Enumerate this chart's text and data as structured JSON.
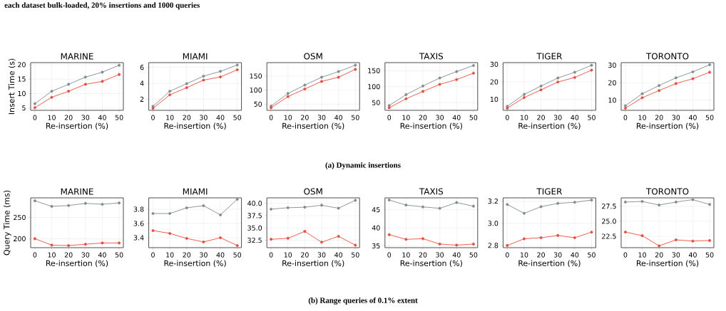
{
  "chart_data": [
    {
      "type": "line",
      "title": "MARINE",
      "xlabel": "Re-insertion (%)",
      "ylabel": "Insert Time (s)",
      "annotations": [
        "each dataset bulk-loaded, 20% insertions and 1000 queries",
        "(a) Dynamic insertions"
      ],
      "x": [
        0,
        10,
        20,
        30,
        40,
        50
      ],
      "xlim": [
        -2.5,
        52.5
      ],
      "xticks": [
        0,
        10,
        20,
        30,
        40,
        50
      ],
      "ylim": [
        4.2,
        20.7
      ],
      "yticks": [
        5,
        10,
        15,
        20
      ],
      "grid": true,
      "marker": "circle",
      "series": [
        {
          "color": "#7f8c8d",
          "values": [
            6.5,
            10.8,
            13.2,
            15.7,
            17.4,
            19.8
          ]
        },
        {
          "color": "#e74c3c",
          "values": [
            5.1,
            8.7,
            10.8,
            13.2,
            14.2,
            16.6
          ]
        }
      ]
    },
    {
      "type": "line",
      "title": "MIAMI",
      "xlabel": "Re-insertion (%)",
      "x": [
        0,
        10,
        20,
        30,
        40,
        50
      ],
      "xlim": [
        -2.5,
        52.5
      ],
      "xticks": [
        0,
        10,
        20,
        30,
        40,
        50
      ],
      "ylim": [
        0.6,
        6.6
      ],
      "yticks": [
        2,
        4,
        6
      ],
      "grid": true,
      "marker": "circle",
      "series": [
        {
          "color": "#7f8c8d",
          "values": [
            1.1,
            3.0,
            3.95,
            4.9,
            5.5,
            6.3
          ]
        },
        {
          "color": "#e74c3c",
          "values": [
            0.85,
            2.55,
            3.45,
            4.4,
            4.8,
            5.7
          ]
        }
      ]
    },
    {
      "type": "line",
      "title": "OSM",
      "xlabel": "Re-insertion (%)",
      "x": [
        0,
        10,
        20,
        30,
        40,
        50
      ],
      "xlim": [
        -2.5,
        52.5
      ],
      "xticks": [
        0,
        10,
        20,
        30,
        40,
        50
      ],
      "ylim": [
        28,
        198
      ],
      "yticks": [
        50,
        100,
        150
      ],
      "grid": true,
      "marker": "circle",
      "series": [
        {
          "color": "#7f8c8d",
          "values": [
            43,
            88,
            118,
            146,
            166,
            189
          ]
        },
        {
          "color": "#e74c3c",
          "values": [
            37,
            77,
            104,
            131,
            146,
            174
          ]
        }
      ]
    },
    {
      "type": "line",
      "title": "TAXIS",
      "xlabel": "Re-insertion (%)",
      "x": [
        0,
        10,
        20,
        30,
        40,
        50
      ],
      "xlim": [
        -2.5,
        52.5
      ],
      "xticks": [
        0,
        10,
        20,
        30,
        40,
        50
      ],
      "ylim": [
        26,
        175
      ],
      "yticks": [
        50,
        100,
        150
      ],
      "grid": true,
      "marker": "circle",
      "series": [
        {
          "color": "#7f8c8d",
          "values": [
            41,
            75,
            102,
            127,
            147,
            166
          ]
        },
        {
          "color": "#e74c3c",
          "values": [
            34,
            62,
            85,
            107,
            122,
            142
          ]
        }
      ]
    },
    {
      "type": "line",
      "title": "TIGER",
      "xlabel": "Re-insertion (%)",
      "x": [
        0,
        10,
        20,
        30,
        40,
        50
      ],
      "xlim": [
        -2.5,
        52.5
      ],
      "xticks": [
        0,
        10,
        20,
        30,
        40,
        50
      ],
      "ylim": [
        3.7,
        31
      ],
      "yticks": [
        10,
        20,
        30
      ],
      "grid": true,
      "marker": "circle",
      "series": [
        {
          "color": "#7f8c8d",
          "values": [
            6.0,
            12.8,
            17.6,
            22.2,
            25.5,
            29.5
          ]
        },
        {
          "color": "#e74c3c",
          "values": [
            4.9,
            11.0,
            15.4,
            19.9,
            22.5,
            26.7
          ]
        }
      ]
    },
    {
      "type": "line",
      "title": "TORONTO",
      "xlabel": "Re-insertion (%)",
      "x": [
        0,
        10,
        20,
        30,
        40,
        50
      ],
      "xlim": [
        -2.5,
        52.5
      ],
      "xticks": [
        0,
        10,
        20,
        30,
        40,
        50
      ],
      "ylim": [
        4.2,
        31.5
      ],
      "yticks": [
        10,
        20,
        30
      ],
      "grid": true,
      "marker": "circle",
      "series": [
        {
          "color": "#7f8c8d",
          "values": [
            6.8,
            13.7,
            18.4,
            22.8,
            26.2,
            30.3
          ]
        },
        {
          "color": "#e74c3c",
          "values": [
            5.4,
            11.4,
            15.5,
            19.5,
            22.3,
            26.0
          ]
        }
      ]
    },
    {
      "type": "line",
      "title": "MARINE",
      "xlabel": "Re-insertion (%)",
      "ylabel": "Query Time (ms)",
      "annotations": [
        "(b) Range queries of 0.1% extent"
      ],
      "x": [
        0,
        10,
        20,
        30,
        40,
        50
      ],
      "xlim": [
        -2.5,
        52.5
      ],
      "xticks": [
        0,
        10,
        20,
        30,
        40,
        50
      ],
      "ylim": [
        179,
        296
      ],
      "yticks": [
        200,
        250
      ],
      "grid": true,
      "marker": "circle",
      "series": [
        {
          "color": "#7f8c8d",
          "values": [
            289,
            276,
            278,
            283,
            281,
            284
          ]
        },
        {
          "color": "#e74c3c",
          "values": [
            200,
            185,
            184,
            187,
            190,
            190
          ]
        }
      ]
    },
    {
      "type": "line",
      "title": "MIAMI",
      "xlabel": "Re-insertion (%)",
      "x": [
        0,
        10,
        20,
        30,
        40,
        50
      ],
      "xlim": [
        -2.5,
        52.5
      ],
      "xticks": [
        0,
        10,
        20,
        30,
        40,
        50
      ],
      "ylim": [
        3.26,
        3.96
      ],
      "yticks": [
        3.4,
        3.6,
        3.8
      ],
      "grid": true,
      "marker": "circle",
      "series": [
        {
          "color": "#7f8c8d",
          "values": [
            3.74,
            3.74,
            3.82,
            3.85,
            3.72,
            3.94
          ]
        },
        {
          "color": "#e74c3c",
          "values": [
            3.5,
            3.46,
            3.39,
            3.34,
            3.4,
            3.29
          ]
        }
      ]
    },
    {
      "type": "line",
      "title": "OSM",
      "xlabel": "Re-insertion (%)",
      "x": [
        0,
        10,
        20,
        30,
        40,
        50
      ],
      "xlim": [
        -2.5,
        52.5
      ],
      "xticks": [
        0,
        10,
        20,
        30,
        40,
        50
      ],
      "ylim": [
        31,
        41.1
      ],
      "yticks": [
        32.5,
        {
          "value": 35,
          "label": "35.0"
        },
        37.5,
        {
          "value": 40,
          "label": "40.0"
        }
      ],
      "grid": true,
      "marker": "circle",
      "series": [
        {
          "color": "#7f8c8d",
          "values": [
            38.8,
            39.1,
            39.2,
            39.6,
            39.0,
            40.6
          ]
        },
        {
          "color": "#e74c3c",
          "values": [
            32.7,
            32.9,
            34.3,
            32.1,
            33.3,
            31.5
          ]
        }
      ]
    },
    {
      "type": "line",
      "title": "TAXIS",
      "xlabel": "Re-insertion (%)",
      "x": [
        0,
        10,
        20,
        30,
        40,
        50
      ],
      "xlim": [
        -2.5,
        52.5
      ],
      "xticks": [
        0,
        10,
        20,
        30,
        40,
        50
      ],
      "ylim": [
        34.5,
        48.3
      ],
      "yticks": [
        35,
        40,
        45
      ],
      "grid": true,
      "marker": "circle",
      "series": [
        {
          "color": "#7f8c8d",
          "values": [
            47.7,
            46.3,
            45.8,
            45.4,
            47.0,
            46.0
          ]
        },
        {
          "color": "#e74c3c",
          "values": [
            38.1,
            36.8,
            37.0,
            35.5,
            35.2,
            35.5
          ]
        }
      ]
    },
    {
      "type": "line",
      "title": "TIGER",
      "xlabel": "Re-insertion (%)",
      "x": [
        0,
        10,
        20,
        30,
        40,
        50
      ],
      "xlim": [
        -2.5,
        52.5
      ],
      "xticks": [
        0,
        10,
        20,
        30,
        40,
        50
      ],
      "ylim": [
        2.78,
        3.23
      ],
      "yticks": [
        2.8,
        {
          "value": 3,
          "label": "3.0"
        },
        3.2
      ],
      "grid": true,
      "marker": "circle",
      "series": [
        {
          "color": "#7f8c8d",
          "values": [
            3.17,
            3.09,
            3.15,
            3.18,
            3.19,
            3.21
          ]
        },
        {
          "color": "#e74c3c",
          "values": [
            2.8,
            2.86,
            2.87,
            2.89,
            2.87,
            2.92
          ]
        }
      ]
    },
    {
      "type": "line",
      "title": "TORONTO",
      "xlabel": "Re-insertion (%)",
      "x": [
        0,
        10,
        20,
        30,
        40,
        50
      ],
      "xlim": [
        -2.5,
        52.5
      ],
      "xticks": [
        0,
        10,
        20,
        30,
        40,
        50
      ],
      "ylim": [
        20.6,
        28.9
      ],
      "yticks": [
        22.5,
        {
          "value": 25,
          "label": "25.0"
        },
        27.5
      ],
      "grid": true,
      "marker": "circle",
      "series": [
        {
          "color": "#7f8c8d",
          "values": [
            28.2,
            28.3,
            27.7,
            28.2,
            28.6,
            27.8
          ]
        },
        {
          "color": "#e74c3c",
          "values": [
            23.2,
            22.6,
            20.9,
            21.9,
            21.7,
            21.8
          ]
        }
      ]
    }
  ]
}
